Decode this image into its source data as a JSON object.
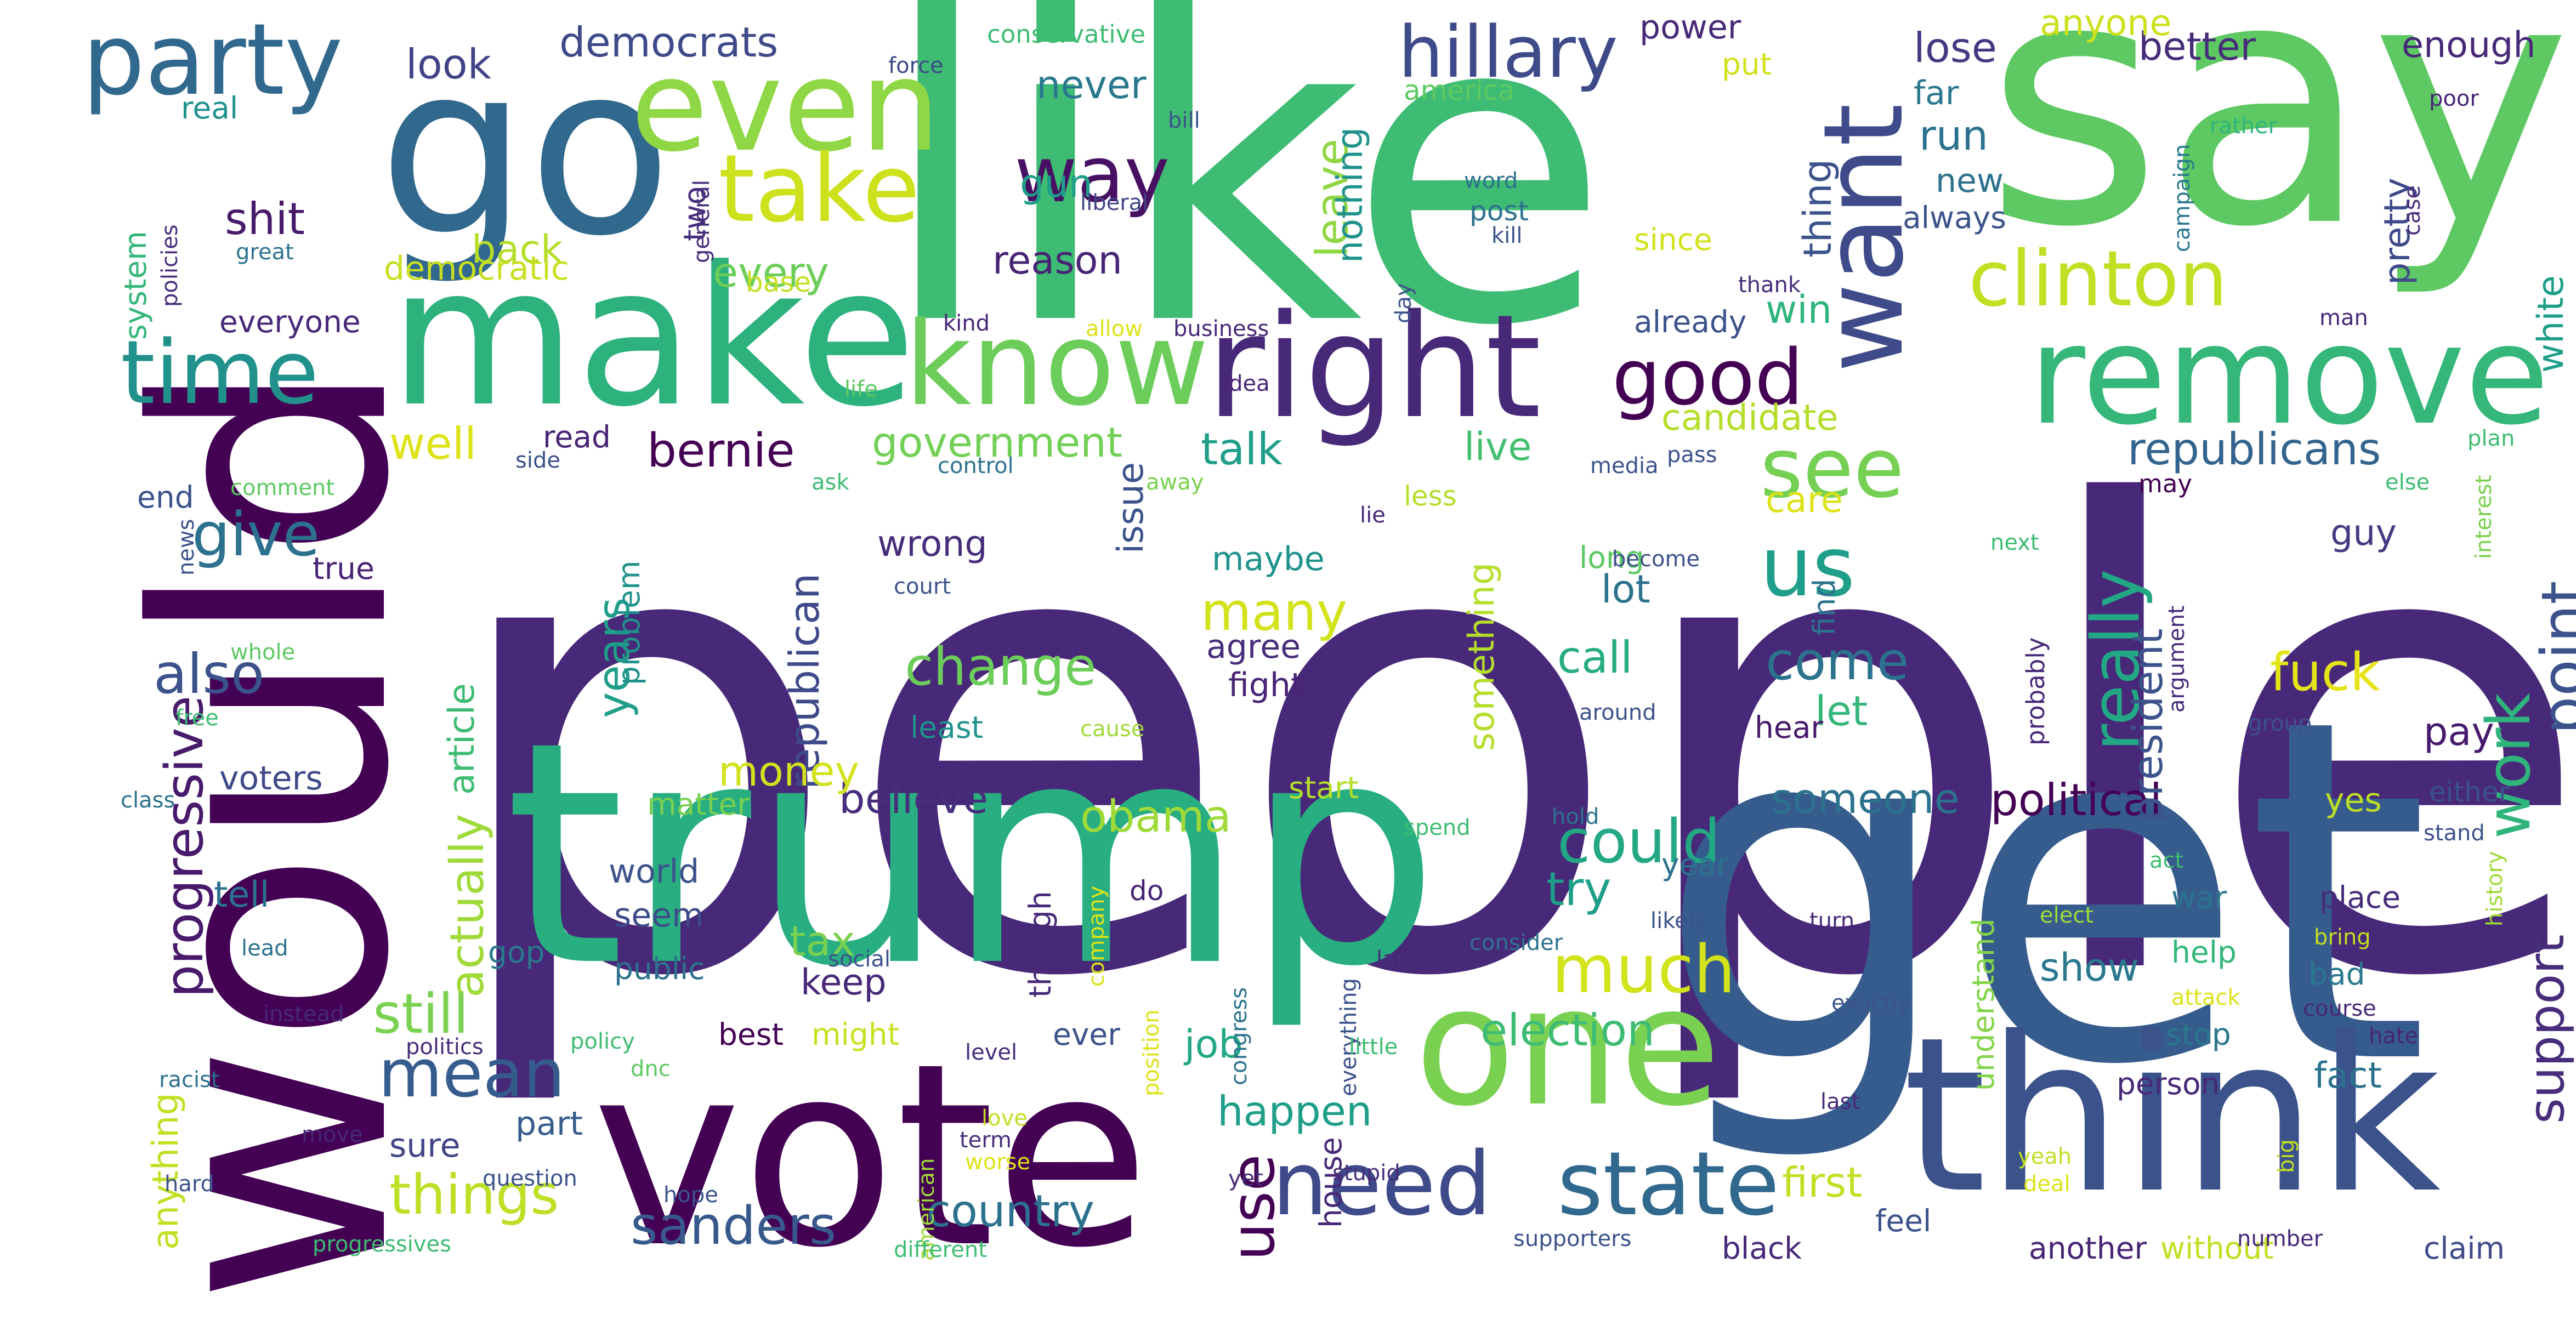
{
  "palette": {
    "dark_purple": "#440154",
    "indigo": "#472e7c",
    "violet": "#46327e",
    "blue": "#365c8d",
    "steel": "#3b528b",
    "teal_blue": "#2c728e",
    "teal": "#21918c",
    "sea": "#28ae80",
    "green": "#3fbc73",
    "lime": "#5ec962",
    "yellow_green": "#addc30",
    "yellow": "#d8e219",
    "bright_yellow": "#fde725"
  },
  "words": [
    {
      "t": "people",
      "c": "#482878"
    },
    {
      "t": "like",
      "c": "#3fbc73"
    },
    {
      "t": "would",
      "c": "#440154"
    },
    {
      "t": "get",
      "c": "#365c8d"
    },
    {
      "t": "say",
      "c": "#5ec962"
    },
    {
      "t": "trump",
      "c": "#28ae80"
    },
    {
      "t": "vote",
      "c": "#440154"
    },
    {
      "t": "think",
      "c": "#3b528b"
    },
    {
      "t": "go",
      "c": "#31688e"
    },
    {
      "t": "make",
      "c": "#2db27d"
    },
    {
      "t": "one",
      "c": "#7ad151"
    },
    {
      "t": "remove",
      "c": "#35b779"
    },
    {
      "t": "right",
      "c": "#482878"
    },
    {
      "t": "know",
      "c": "#6ccd5a"
    },
    {
      "t": "even",
      "c": "#8fd744"
    },
    {
      "t": "want",
      "c": "#3e4a89"
    },
    {
      "t": "party",
      "c": "#31688e"
    },
    {
      "t": "time",
      "c": "#21918c"
    },
    {
      "t": "take",
      "c": "#cde11d"
    },
    {
      "t": "need",
      "c": "#3e4a89"
    },
    {
      "t": "state",
      "c": "#31688e"
    },
    {
      "t": "good",
      "c": "#440154"
    },
    {
      "t": "see",
      "c": "#75d054"
    },
    {
      "t": "us",
      "c": "#1f9e89"
    },
    {
      "t": "much",
      "c": "#d2e21b"
    },
    {
      "t": "clinton",
      "c": "#c2df23"
    },
    {
      "t": "hillary",
      "c": "#3e4a89"
    },
    {
      "t": "way",
      "c": "#471063"
    },
    {
      "t": "mean",
      "c": "#365c8d"
    },
    {
      "t": "use",
      "c": "#440154"
    },
    {
      "t": "really",
      "c": "#22a884"
    },
    {
      "t": "point",
      "c": "#3b528b"
    },
    {
      "t": "work",
      "c": "#2fb47c"
    },
    {
      "t": "could",
      "c": "#22a884"
    },
    {
      "t": "progressive",
      "c": "#481a6c"
    },
    {
      "t": "give",
      "c": "#2c728e"
    },
    {
      "t": "also",
      "c": "#3b528b"
    },
    {
      "t": "still",
      "c": "#7ad151"
    },
    {
      "t": "actually",
      "c": "#a0da39"
    },
    {
      "t": "sanders",
      "c": "#38598c"
    },
    {
      "t": "things",
      "c": "#bddf26"
    },
    {
      "t": "change",
      "c": "#6ccd5a"
    },
    {
      "t": "many",
      "c": "#d2e21b"
    },
    {
      "t": "come",
      "c": "#2c728e"
    },
    {
      "t": "fuck",
      "c": "#e5e419"
    },
    {
      "t": "support",
      "c": "#472d7b"
    },
    {
      "t": "election",
      "c": "#3fbc73"
    },
    {
      "t": "country",
      "c": "#2c728e"
    },
    {
      "t": "years",
      "c": "#1f9e89"
    },
    {
      "t": "republicans",
      "c": "#32648e"
    },
    {
      "t": "call",
      "c": "#27ad81"
    },
    {
      "t": "leave",
      "c": "#8fd744"
    },
    {
      "t": "bernie",
      "c": "#440154"
    },
    {
      "t": "government",
      "c": "#73d056"
    },
    {
      "t": "republican",
      "c": "#3e4a89"
    },
    {
      "t": "political",
      "c": "#440154"
    },
    {
      "t": "president",
      "c": "#3b528b"
    },
    {
      "t": "try",
      "c": "#1f9e89"
    },
    {
      "t": "someone",
      "c": "#2c728e"
    },
    {
      "t": "obama",
      "c": "#a0da39"
    },
    {
      "t": "believe",
      "c": "#472d7b"
    },
    {
      "t": "talk",
      "c": "#1f9e89"
    },
    {
      "t": "happen",
      "c": "#1f9e89"
    },
    {
      "t": "first",
      "c": "#c2df23"
    },
    {
      "t": "shit",
      "c": "#481a6c"
    },
    {
      "t": "democrats",
      "c": "#3e4a89"
    },
    {
      "t": "look",
      "c": "#414487"
    },
    {
      "t": "tax",
      "c": "#7ad151"
    },
    {
      "t": "well",
      "c": "#dde318"
    },
    {
      "t": "back",
      "c": "#b5de2b"
    },
    {
      "t": "every",
      "c": "#6ccd5a"
    },
    {
      "t": "reason",
      "c": "#482475"
    },
    {
      "t": "never",
      "c": "#2a788e"
    },
    {
      "t": "gun",
      "c": "#1f9e89"
    },
    {
      "t": "run",
      "c": "#2c728e"
    },
    {
      "t": "win",
      "c": "#2fb47c"
    },
    {
      "t": "thing",
      "c": "#3b528b"
    },
    {
      "t": "nothing",
      "c": "#20928c"
    },
    {
      "t": "lose",
      "c": "#443a83"
    },
    {
      "t": "better",
      "c": "#472c7a"
    },
    {
      "t": "anyone",
      "c": "#cde11d"
    },
    {
      "t": "enough",
      "c": "#482878"
    },
    {
      "t": "pretty",
      "c": "#3e4a89"
    },
    {
      "t": "white",
      "c": "#1f9e89"
    },
    {
      "t": "money",
      "c": "#d2e21b"
    },
    {
      "t": "keep",
      "c": "#482878"
    },
    {
      "t": "show",
      "c": "#2a788e"
    },
    {
      "t": "job",
      "c": "#22a884"
    },
    {
      "t": "issue",
      "c": "#3b528b"
    },
    {
      "t": "something",
      "c": "#b5de2b"
    },
    {
      "t": "live",
      "c": "#44bf70"
    },
    {
      "t": "candidate",
      "c": "#b5de2b"
    },
    {
      "t": "care",
      "c": "#dde318"
    },
    {
      "t": "lot",
      "c": "#2c728e"
    },
    {
      "t": "let",
      "c": "#35b779"
    },
    {
      "t": "pay",
      "c": "#481a6c"
    },
    {
      "t": "guy",
      "c": "#443a83"
    },
    {
      "t": "fact",
      "c": "#2c728e"
    },
    {
      "t": "yes",
      "c": "#bddf26"
    },
    {
      "t": "voters",
      "c": "#3e4a89"
    },
    {
      "t": "tell",
      "c": "#2c728e"
    },
    {
      "t": "anything",
      "c": "#c2df23"
    },
    {
      "t": "article",
      "c": "#3fbc73"
    },
    {
      "t": "wrong",
      "c": "#472d7b"
    },
    {
      "t": "agree",
      "c": "#472d7b"
    },
    {
      "t": "maybe",
      "c": "#20928c"
    },
    {
      "t": "fight",
      "c": "#482475"
    },
    {
      "t": "seem",
      "c": "#3e4a89"
    },
    {
      "t": "world",
      "c": "#3b528b"
    },
    {
      "t": "sure",
      "c": "#414487"
    },
    {
      "t": "part",
      "c": "#365c8d"
    },
    {
      "t": "matter",
      "c": "#7ad151"
    },
    {
      "t": "problem",
      "c": "#20928c"
    },
    {
      "t": "start",
      "c": "#b5de2b"
    },
    {
      "t": "power",
      "c": "#482878"
    },
    {
      "t": "put",
      "c": "#d2e21b"
    },
    {
      "t": "new",
      "c": "#2c728e"
    },
    {
      "t": "always",
      "c": "#3b528b"
    },
    {
      "t": "far",
      "c": "#2a788e"
    },
    {
      "t": "since",
      "c": "#d2e21b"
    },
    {
      "t": "already",
      "c": "#3b528b"
    },
    {
      "t": "democratic",
      "c": "#c8e020"
    },
    {
      "t": "everyone",
      "c": "#482878"
    },
    {
      "t": "system",
      "c": "#35b779"
    },
    {
      "t": "real",
      "c": "#20928c"
    },
    {
      "t": "two",
      "c": "#472d7b"
    },
    {
      "t": "read",
      "c": "#482475"
    },
    {
      "t": "end",
      "c": "#3b528b"
    },
    {
      "t": "true",
      "c": "#482475"
    },
    {
      "t": "find",
      "c": "#2c728e"
    },
    {
      "t": "though",
      "c": "#482878"
    },
    {
      "t": "gop",
      "c": "#2a788e"
    },
    {
      "t": "public",
      "c": "#2c728e"
    },
    {
      "t": "best",
      "c": "#440154"
    },
    {
      "t": "might",
      "c": "#c8e020"
    },
    {
      "t": "ever",
      "c": "#3b528b"
    },
    {
      "t": "house",
      "c": "#482878"
    },
    {
      "t": "hear",
      "c": "#481a6c"
    },
    {
      "t": "war",
      "c": "#2c728e"
    },
    {
      "t": "place",
      "c": "#472d7b"
    },
    {
      "t": "help",
      "c": "#35b779"
    },
    {
      "t": "bad",
      "c": "#2a788e"
    },
    {
      "t": "stop",
      "c": "#2a788e"
    },
    {
      "t": "person",
      "c": "#482878"
    },
    {
      "t": "feel",
      "c": "#3b528b"
    },
    {
      "t": "black",
      "c": "#482878"
    },
    {
      "t": "another",
      "c": "#482475"
    },
    {
      "t": "without",
      "c": "#c2df23"
    },
    {
      "t": "claim",
      "c": "#3e4a89"
    },
    {
      "t": "understand",
      "c": "#84d44b"
    },
    {
      "t": "either",
      "c": "#3b528b"
    },
    {
      "t": "long",
      "c": "#5ec962"
    },
    {
      "t": "do",
      "c": "#482475"
    },
    {
      "t": "least",
      "c": "#20928c"
    },
    {
      "t": "less",
      "c": "#b5de2b"
    },
    {
      "t": "conservative",
      "c": "#3fbc73"
    },
    {
      "t": "america",
      "c": "#5ec962"
    },
    {
      "t": "bill",
      "c": "#3b528b"
    },
    {
      "t": "liberal",
      "c": "#414487"
    },
    {
      "t": "general",
      "c": "#472d7b"
    },
    {
      "t": "word",
      "c": "#2c728e"
    },
    {
      "t": "post",
      "c": "#2c728e"
    },
    {
      "t": "kill",
      "c": "#3b528b"
    },
    {
      "t": "campaign",
      "c": "#2a788e"
    },
    {
      "t": "rather",
      "c": "#2fb47c"
    },
    {
      "t": "poor",
      "c": "#482475"
    },
    {
      "t": "case",
      "c": "#472d7b"
    },
    {
      "t": "man",
      "c": "#482878"
    },
    {
      "t": "force",
      "c": "#3e4a89"
    },
    {
      "t": "great",
      "c": "#2c728e"
    },
    {
      "t": "policies",
      "c": "#472d7b"
    },
    {
      "t": "base",
      "c": "#c2df23"
    },
    {
      "t": "kind",
      "c": "#482475"
    },
    {
      "t": "allow",
      "c": "#dde318"
    },
    {
      "t": "business",
      "c": "#482878"
    },
    {
      "t": "idea",
      "c": "#482475"
    },
    {
      "t": "life",
      "c": "#5ec962"
    },
    {
      "t": "day",
      "c": "#3b528b"
    },
    {
      "t": "thank",
      "c": "#472d7b"
    },
    {
      "t": "comment",
      "c": "#5ec962"
    },
    {
      "t": "side",
      "c": "#3b528b"
    },
    {
      "t": "ask",
      "c": "#3fbc73"
    },
    {
      "t": "control",
      "c": "#2c728e"
    },
    {
      "t": "away",
      "c": "#7ad151"
    },
    {
      "t": "lie",
      "c": "#482878"
    },
    {
      "t": "media",
      "c": "#3b528b"
    },
    {
      "t": "pass",
      "c": "#3b528b"
    },
    {
      "t": "plan",
      "c": "#3fbc73"
    },
    {
      "t": "may",
      "c": "#440154"
    },
    {
      "t": "else",
      "c": "#3fbc73"
    },
    {
      "t": "interest",
      "c": "#7ad151"
    },
    {
      "t": "next",
      "c": "#3fbc73"
    },
    {
      "t": "become",
      "c": "#3b528b"
    },
    {
      "t": "probably",
      "c": "#482878"
    },
    {
      "t": "argument",
      "c": "#472d7b"
    },
    {
      "t": "court",
      "c": "#3b528b"
    },
    {
      "t": "news",
      "c": "#3b528b"
    },
    {
      "t": "whole",
      "c": "#5ec962"
    },
    {
      "t": "free",
      "c": "#3fbc73"
    },
    {
      "t": "class",
      "c": "#2c728e"
    },
    {
      "t": "lead",
      "c": "#2c728e"
    },
    {
      "t": "cause",
      "c": "#a0da39"
    },
    {
      "t": "around",
      "c": "#3b528b"
    },
    {
      "t": "group",
      "c": "#3b528b"
    },
    {
      "t": "spend",
      "c": "#3fbc73"
    },
    {
      "t": "hold",
      "c": "#2c728e"
    },
    {
      "t": "act",
      "c": "#3fbc73"
    },
    {
      "t": "year",
      "c": "#2c728e"
    },
    {
      "t": "stand",
      "c": "#3b528b"
    },
    {
      "t": "history",
      "c": "#a0da39"
    },
    {
      "t": "elect",
      "c": "#a0da39"
    },
    {
      "t": "bring",
      "c": "#c2df23"
    },
    {
      "t": "turn",
      "c": "#482878"
    },
    {
      "t": "likely",
      "c": "#3b528b"
    },
    {
      "t": "consider",
      "c": "#2c728e"
    },
    {
      "t": "social",
      "c": "#3b528b"
    },
    {
      "t": "company",
      "c": "#dde318"
    },
    {
      "t": "position",
      "c": "#dde318"
    },
    {
      "t": "congress",
      "c": "#2c728e"
    },
    {
      "t": "everything",
      "c": "#3b528b"
    },
    {
      "t": "law",
      "c": "#472d7b"
    },
    {
      "t": "exactly",
      "c": "#3b528b"
    },
    {
      "t": "attack",
      "c": "#dde318"
    },
    {
      "t": "course",
      "c": "#482878"
    },
    {
      "t": "hate",
      "c": "#482475"
    },
    {
      "t": "instead",
      "c": "#482878"
    },
    {
      "t": "politics",
      "c": "#472d7b"
    },
    {
      "t": "policy",
      "c": "#3fbc73"
    },
    {
      "t": "level",
      "c": "#472d7b"
    },
    {
      "t": "little",
      "c": "#3fbc73"
    },
    {
      "t": "racist",
      "c": "#2c728e"
    },
    {
      "t": "dnc",
      "c": "#5ec962"
    },
    {
      "t": "love",
      "c": "#c2df23"
    },
    {
      "t": "term",
      "c": "#472d7b"
    },
    {
      "t": "worse",
      "c": "#dde318"
    },
    {
      "t": "last",
      "c": "#482878"
    },
    {
      "t": "move",
      "c": "#482878"
    },
    {
      "t": "question",
      "c": "#3b528b"
    },
    {
      "t": "american",
      "c": "#a0da39"
    },
    {
      "t": "yet",
      "c": "#482878"
    },
    {
      "t": "stupid",
      "c": "#472d7b"
    },
    {
      "t": "hope",
      "c": "#3b528b"
    },
    {
      "t": "big",
      "c": "#c2df23"
    },
    {
      "t": "yeah",
      "c": "#c2df23"
    },
    {
      "t": "deal",
      "c": "#dde318"
    },
    {
      "t": "hard",
      "c": "#3b528b"
    },
    {
      "t": "progressives",
      "c": "#3fbc73"
    },
    {
      "t": "different",
      "c": "#3fbc73"
    },
    {
      "t": "supporters",
      "c": "#3b528b"
    },
    {
      "t": "number",
      "c": "#482878"
    }
  ]
}
